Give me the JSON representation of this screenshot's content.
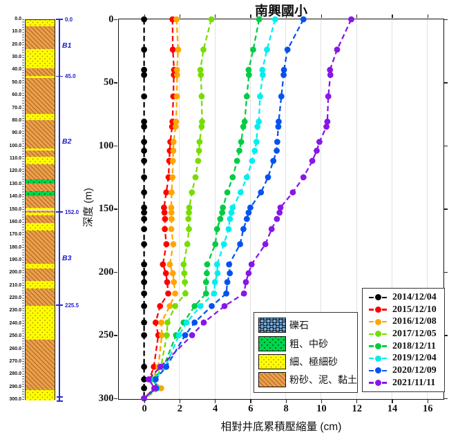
{
  "title": "南興國小",
  "axes": {
    "x_label": "相對井底累積壓縮量 (cm)",
    "y_label": "深度 (m)",
    "x_ticks": [
      "0",
      "2",
      "4",
      "6",
      "8",
      "10",
      "12",
      "14",
      "16"
    ],
    "y_ticks": [
      "0",
      "50",
      "100",
      "150",
      "200",
      "250",
      "300"
    ],
    "x_range": [
      -1.43,
      16.87
    ],
    "y_range": [
      0,
      300
    ]
  },
  "chart_data": {
    "type": "line",
    "title": "南興國小",
    "xlabel": "相對井底累積壓縮量 (cm)",
    "ylabel": "深度 (m)",
    "x_unit": "cm",
    "y_unit": "m",
    "depths_m": [
      0,
      24,
      40,
      44,
      61,
      81,
      85,
      97,
      104,
      112,
      125,
      137,
      149,
      153,
      158,
      166,
      178,
      194,
      201,
      208,
      217,
      227,
      240,
      250,
      275,
      285,
      292,
      300
    ],
    "series": [
      {
        "name": "2014/12/04",
        "color": "#000000",
        "values": [
          0,
          0,
          0,
          0,
          0,
          0,
          0,
          0,
          0,
          0,
          0,
          0,
          0,
          0,
          0,
          0,
          0,
          0,
          0,
          0,
          0,
          0,
          0,
          0,
          0,
          0,
          0,
          0
        ]
      },
      {
        "name": "2015/12/10",
        "color": "#FF0000",
        "values": [
          1.6,
          1.62,
          1.69,
          1.68,
          1.65,
          1.6,
          1.58,
          1.48,
          1.45,
          1.42,
          1.38,
          1.25,
          1.12,
          1.15,
          1.18,
          1.17,
          1.26,
          1.06,
          1.23,
          1.3,
          1.36,
          0.9,
          0.65,
          0.8,
          0.55,
          0.3,
          0.57,
          0.0
        ]
      },
      {
        "name": "2016/12/08",
        "color": "#FFA500",
        "values": [
          1.83,
          1.92,
          1.85,
          1.86,
          1.85,
          1.8,
          1.78,
          1.66,
          1.65,
          1.62,
          1.6,
          1.55,
          1.53,
          1.54,
          1.55,
          1.53,
          1.65,
          1.45,
          1.62,
          1.68,
          1.75,
          1.45,
          0.97,
          1.0,
          0.8,
          0.45,
          0.96,
          0.0
        ]
      },
      {
        "name": "2017/12/05",
        "color": "#77DD00",
        "values": [
          3.8,
          3.35,
          3.18,
          3.2,
          3.25,
          3.27,
          3.25,
          3.13,
          3.1,
          3.05,
          2.9,
          2.7,
          2.55,
          2.53,
          2.5,
          2.53,
          2.44,
          2.23,
          2.27,
          2.3,
          2.33,
          1.75,
          1.32,
          1.28,
          0.95,
          0.5,
          0.75,
          0.0
        ]
      },
      {
        "name": "2018/12/11",
        "color": "#00CC44",
        "values": [
          6.5,
          6.16,
          5.9,
          5.92,
          5.8,
          5.68,
          5.6,
          5.48,
          5.38,
          5.25,
          5.0,
          4.7,
          4.45,
          4.41,
          4.3,
          4.12,
          4.02,
          3.56,
          3.54,
          3.5,
          3.5,
          2.85,
          2.23,
          1.8,
          1.1,
          0.55,
          0.7,
          0.0
        ]
      },
      {
        "name": "2019/12/04",
        "color": "#00EEEE",
        "values": [
          7.4,
          6.94,
          6.68,
          6.7,
          6.55,
          6.48,
          6.4,
          6.35,
          6.25,
          6.1,
          5.8,
          5.45,
          5.0,
          4.93,
          4.85,
          4.77,
          4.51,
          4.12,
          4.15,
          4.0,
          3.95,
          3.18,
          2.4,
          1.97,
          1.2,
          0.6,
          0.72,
          0.0
        ]
      },
      {
        "name": "2020/12/09",
        "color": "#0652F0",
        "values": [
          9.0,
          8.1,
          7.9,
          7.88,
          7.75,
          7.6,
          7.58,
          7.52,
          7.49,
          7.3,
          7.0,
          6.6,
          6.0,
          5.9,
          5.8,
          5.61,
          5.42,
          4.8,
          4.84,
          4.7,
          4.64,
          3.82,
          2.85,
          2.32,
          1.25,
          0.65,
          0.68,
          0.0
        ]
      },
      {
        "name": "2021/11/11",
        "color": "#8816E8",
        "values": [
          11.7,
          10.9,
          10.5,
          10.52,
          10.4,
          10.35,
          10.3,
          9.9,
          9.75,
          9.5,
          9.0,
          8.4,
          7.7,
          7.65,
          7.5,
          7.2,
          6.85,
          6.07,
          5.9,
          5.75,
          5.64,
          4.54,
          3.37,
          2.71,
          0.92,
          0.25,
          0.6,
          0.0
        ]
      }
    ],
    "legend_position": "lower right",
    "grid": "vertical only"
  },
  "borehole": {
    "depth_tick_labels": [
      "0.0",
      "10.0",
      "20.0",
      "30.0",
      "40.0",
      "50.0",
      "60.0",
      "70.0",
      "80.0",
      "90.0",
      "100.0",
      "110.0",
      "120.0",
      "130.0",
      "140.0",
      "150.0",
      "160.0",
      "170.0",
      "180.0",
      "190.0",
      "200.0",
      "210.0",
      "220.0",
      "230.0",
      "240.0",
      "250.0",
      "260.0",
      "270.0",
      "280.0",
      "290.0",
      "300.0"
    ],
    "layers": [
      {
        "from": 0,
        "to": 5,
        "material": "fine_sand"
      },
      {
        "from": 5,
        "to": 23,
        "material": "silt_clay"
      },
      {
        "from": 23,
        "to": 38,
        "material": "fine_sand"
      },
      {
        "from": 38,
        "to": 44,
        "material": "silt_clay"
      },
      {
        "from": 44,
        "to": 46,
        "material": "fine_sand"
      },
      {
        "from": 46,
        "to": 74,
        "material": "silt_clay"
      },
      {
        "from": 74,
        "to": 79,
        "material": "fine_sand"
      },
      {
        "from": 79,
        "to": 101,
        "material": "silt_clay"
      },
      {
        "from": 101,
        "to": 103,
        "material": "fine_sand"
      },
      {
        "from": 103,
        "to": 108,
        "material": "silt_clay"
      },
      {
        "from": 108,
        "to": 114,
        "material": "fine_sand"
      },
      {
        "from": 114,
        "to": 126,
        "material": "silt_clay"
      },
      {
        "from": 126,
        "to": 129,
        "material": "coarse_sand"
      },
      {
        "from": 129,
        "to": 135,
        "material": "silt_clay"
      },
      {
        "from": 135,
        "to": 139,
        "material": "coarse_sand"
      },
      {
        "from": 139,
        "to": 148,
        "material": "silt_clay"
      },
      {
        "from": 148,
        "to": 150,
        "material": "fine_sand"
      },
      {
        "from": 150,
        "to": 152,
        "material": "silt_clay"
      },
      {
        "from": 152,
        "to": 154,
        "material": "fine_sand"
      },
      {
        "from": 154,
        "to": 160,
        "material": "silt_clay"
      },
      {
        "from": 160,
        "to": 166,
        "material": "fine_sand"
      },
      {
        "from": 166,
        "to": 192,
        "material": "silt_clay"
      },
      {
        "from": 192,
        "to": 196,
        "material": "fine_sand"
      },
      {
        "from": 196,
        "to": 206,
        "material": "silt_clay"
      },
      {
        "from": 206,
        "to": 212,
        "material": "fine_sand"
      },
      {
        "from": 212,
        "to": 225.5,
        "material": "silt_clay"
      },
      {
        "from": 225.5,
        "to": 252,
        "material": "fine_sand"
      },
      {
        "from": 252,
        "to": 292,
        "material": "silt_clay"
      },
      {
        "from": 292,
        "to": 300,
        "material": "fine_sand"
      }
    ],
    "boundary_markers": [
      {
        "depth": 0,
        "label": "0.0"
      },
      {
        "depth": 45,
        "label": "45.0"
      },
      {
        "depth": 152,
        "label": "152.0"
      },
      {
        "depth": 225.5,
        "label": "225.5"
      }
    ],
    "zones": [
      {
        "depth": 20,
        "label": "B1"
      },
      {
        "depth": 96,
        "label": "B2"
      },
      {
        "depth": 188,
        "label": "B3"
      }
    ]
  },
  "litho_legend": {
    "items": [
      {
        "material": "gravel",
        "label": "礫石"
      },
      {
        "material": "coarse_sand",
        "label": "粗、中砂"
      },
      {
        "material": "fine_sand",
        "label": "細、極細砂"
      },
      {
        "material": "silt_clay",
        "label": "粉砂、泥、黏土"
      }
    ]
  }
}
